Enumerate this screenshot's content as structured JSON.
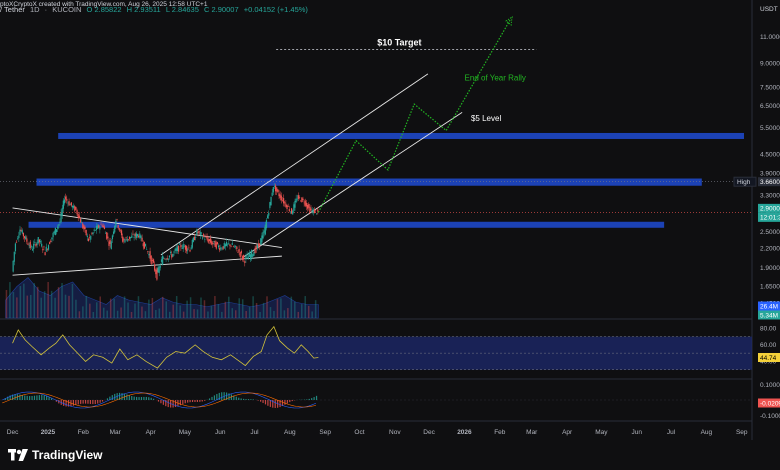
{
  "header": {
    "pair": "/ Tether",
    "interval": "1D",
    "exchange": "KUCOIN",
    "creator": "ptoXCryptoX created with TradingView.com, Aug 26, 2025 12:58 UTC+1",
    "o": "O 2.85822",
    "h": "H 2.93511",
    "l": "L 2.84635",
    "c": "C 2.90007",
    "change": "+0.04152 (+1.45%)"
  },
  "currency": "USDT",
  "footer_logo": "TradingView",
  "colors": {
    "background": "#0f0f11",
    "zone": "#1e4bd2",
    "up": "#26a69a",
    "down": "#ef5350",
    "projection": "#22b622",
    "rsi_line": "#d4c43a"
  },
  "chart_data": [
    {
      "type": "line",
      "subtype": "candlestick",
      "scale": "log",
      "x_ticks": [
        "Dec",
        "2025",
        "Feb",
        "Mar",
        "Apr",
        "May",
        "Jun",
        "Jul",
        "Aug",
        "Sep",
        "Oct",
        "Nov",
        "Dec",
        "2026",
        "Feb",
        "Mar",
        "Apr",
        "May",
        "Jun",
        "Jul",
        "Aug",
        "Sep"
      ],
      "y_ticks": [
        "11.0000",
        "9.0000",
        "7.5000",
        "6.5000",
        "5.5000",
        "4.5000",
        "3.9000",
        "3.3000",
        "2.9000",
        "2.5000",
        "2.2000",
        "1.9000",
        "1.6500",
        "1.4500"
      ],
      "ylim": [
        1.3,
        12.5
      ],
      "price_path": [
        [
          "2024-12-01",
          1.85
        ],
        [
          "2024-12-04",
          2.3
        ],
        [
          "2024-12-08",
          2.55
        ],
        [
          "2024-12-12",
          2.4
        ],
        [
          "2024-12-18",
          2.2
        ],
        [
          "2024-12-24",
          2.35
        ],
        [
          "2024-12-30",
          2.15
        ],
        [
          "2025-01-06",
          2.45
        ],
        [
          "2025-01-12",
          2.7
        ],
        [
          "2025-01-16",
          3.25
        ],
        [
          "2025-01-20",
          3.1
        ],
        [
          "2025-01-26",
          2.95
        ],
        [
          "2025-02-01",
          2.6
        ],
        [
          "2025-02-06",
          2.35
        ],
        [
          "2025-02-12",
          2.55
        ],
        [
          "2025-02-18",
          2.65
        ],
        [
          "2025-02-25",
          2.25
        ],
        [
          "2025-03-02",
          2.75
        ],
        [
          "2025-03-08",
          2.35
        ],
        [
          "2025-03-15",
          2.4
        ],
        [
          "2025-03-22",
          2.45
        ],
        [
          "2025-03-30",
          2.15
        ],
        [
          "2025-04-07",
          1.8
        ],
        [
          "2025-04-12",
          2.05
        ],
        [
          "2025-04-20",
          2.1
        ],
        [
          "2025-04-28",
          2.25
        ],
        [
          "2025-05-06",
          2.2
        ],
        [
          "2025-05-12",
          2.5
        ],
        [
          "2025-05-18",
          2.4
        ],
        [
          "2025-05-25",
          2.3
        ],
        [
          "2025-06-02",
          2.22
        ],
        [
          "2025-06-10",
          2.28
        ],
        [
          "2025-06-18",
          2.15
        ],
        [
          "2025-06-22",
          2.02
        ],
        [
          "2025-06-28",
          2.1
        ],
        [
          "2025-07-05",
          2.25
        ],
        [
          "2025-07-10",
          2.5
        ],
        [
          "2025-07-14",
          2.95
        ],
        [
          "2025-07-18",
          3.55
        ],
        [
          "2025-07-22",
          3.35
        ],
        [
          "2025-07-28",
          3.1
        ],
        [
          "2025-08-03",
          2.9
        ],
        [
          "2025-08-08",
          3.25
        ],
        [
          "2025-08-14",
          3.15
        ],
        [
          "2025-08-19",
          2.95
        ],
        [
          "2025-08-26",
          2.9
        ]
      ],
      "projection": [
        [
          "2025-08-26",
          2.9
        ],
        [
          "2025-09-28",
          5.0
        ],
        [
          "2025-10-26",
          4.0
        ],
        [
          "2025-11-18",
          6.6
        ],
        [
          "2025-12-16",
          5.4
        ],
        [
          "2026-02-10",
          12.5
        ]
      ],
      "zones": [
        {
          "from_date": "2025-01-10",
          "to_date": "2026-09-08",
          "low": 5.1,
          "high": 5.3
        },
        {
          "from_date": "2024-12-22",
          "to_date": "2026-07-28",
          "low": 3.55,
          "high": 3.75
        },
        {
          "from_date": "2024-12-15",
          "to_date": "2026-06-25",
          "low": 2.6,
          "high": 2.7
        }
      ],
      "annotations": [
        {
          "text": "$10 Target",
          "price": 10.0
        },
        {
          "text": "End of Year Rally"
        },
        {
          "text": "$5 Level"
        }
      ],
      "markers": [
        {
          "label": "High",
          "value": "3.6600"
        },
        {
          "label": "",
          "value": "2.9000"
        },
        {
          "label": "",
          "value": "12:01:3"
        }
      ]
    },
    {
      "type": "area",
      "name_hidden": "volume",
      "markers": [
        {
          "value": "26.4M"
        },
        {
          "value": "5.34M"
        }
      ]
    },
    {
      "type": "line",
      "subtype": "rsi",
      "y_ticks": [
        "80.00",
        "60.00",
        "40.00"
      ],
      "band": [
        30,
        70
      ],
      "ylim": [
        20,
        90
      ],
      "marker": "44.74",
      "values": [
        [
          "2024-12-01",
          62
        ],
        [
          "2024-12-06",
          78
        ],
        [
          "2024-12-12",
          66
        ],
        [
          "2024-12-18",
          58
        ],
        [
          "2024-12-26",
          48
        ],
        [
          "2025-01-02",
          56
        ],
        [
          "2025-01-08",
          62
        ],
        [
          "2025-01-14",
          72
        ],
        [
          "2025-01-20",
          60
        ],
        [
          "2025-01-27",
          50
        ],
        [
          "2025-02-03",
          40
        ],
        [
          "2025-02-10",
          48
        ],
        [
          "2025-02-18",
          45
        ],
        [
          "2025-02-26",
          38
        ],
        [
          "2025-03-05",
          55
        ],
        [
          "2025-03-12",
          42
        ],
        [
          "2025-03-20",
          48
        ],
        [
          "2025-03-28",
          40
        ],
        [
          "2025-04-07",
          32
        ],
        [
          "2025-04-15",
          45
        ],
        [
          "2025-04-23",
          52
        ],
        [
          "2025-05-01",
          50
        ],
        [
          "2025-05-10",
          60
        ],
        [
          "2025-05-17",
          52
        ],
        [
          "2025-05-25",
          45
        ],
        [
          "2025-06-02",
          42
        ],
        [
          "2025-06-10",
          48
        ],
        [
          "2025-06-18",
          40
        ],
        [
          "2025-06-23",
          35
        ],
        [
          "2025-06-30",
          46
        ],
        [
          "2025-07-07",
          52
        ],
        [
          "2025-07-12",
          72
        ],
        [
          "2025-07-18",
          82
        ],
        [
          "2025-07-23",
          65
        ],
        [
          "2025-07-30",
          56
        ],
        [
          "2025-08-05",
          50
        ],
        [
          "2025-08-11",
          60
        ],
        [
          "2025-08-17",
          52
        ],
        [
          "2025-08-22",
          44
        ],
        [
          "2025-08-26",
          44.74
        ]
      ]
    },
    {
      "type": "bar",
      "subtype": "macd-histogram",
      "y_ticks": [
        "0.10000",
        "-0.10000"
      ],
      "marker": "-0.0209"
    }
  ]
}
